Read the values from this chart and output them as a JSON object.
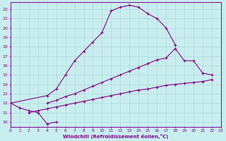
{
  "xlabel": "Windchill (Refroidissement éolien,°C)",
  "bg_color": "#c8eef0",
  "grid_color": "#b0d8da",
  "line_color": "#880088",
  "text_color": "#880088",
  "xlim": [
    0,
    23
  ],
  "ylim": [
    9.5,
    22.7
  ],
  "xticks": [
    0,
    1,
    2,
    3,
    4,
    5,
    6,
    7,
    8,
    9,
    10,
    11,
    12,
    13,
    14,
    15,
    16,
    17,
    18,
    19,
    20,
    21,
    22,
    23
  ],
  "yticks": [
    10,
    11,
    12,
    13,
    14,
    15,
    16,
    17,
    18,
    19,
    20,
    21,
    22
  ],
  "curve1": {
    "x": [
      0,
      1,
      2,
      3,
      4,
      5
    ],
    "y": [
      12.0,
      11.5,
      11.2,
      11.0,
      9.8,
      10.0
    ]
  },
  "curve2": {
    "x": [
      2,
      3,
      4,
      5,
      6,
      7,
      8,
      9,
      10,
      11,
      12,
      13,
      14,
      15,
      16,
      17,
      18,
      19,
      20,
      21,
      22
    ],
    "y": [
      11.0,
      11.2,
      11.4,
      11.6,
      11.8,
      12.0,
      12.2,
      12.4,
      12.6,
      12.8,
      13.0,
      13.2,
      13.4,
      13.5,
      13.7,
      13.9,
      14.0,
      14.1,
      14.2,
      14.3,
      14.5
    ]
  },
  "curve3": {
    "x": [
      4,
      5,
      6,
      7,
      8,
      9,
      10,
      11,
      12,
      13,
      14,
      15,
      16,
      17,
      18,
      19,
      20,
      21,
      22
    ],
    "y": [
      12.0,
      12.3,
      12.7,
      13.0,
      13.4,
      13.8,
      14.2,
      14.6,
      15.0,
      15.4,
      15.8,
      16.2,
      16.6,
      16.8,
      17.8,
      16.5,
      16.5,
      15.2,
      15.0
    ]
  },
  "curve4": {
    "x": [
      0,
      4,
      5,
      6,
      7,
      8,
      9,
      10,
      11,
      12,
      13,
      14,
      15,
      16,
      17,
      18
    ],
    "y": [
      12.0,
      12.8,
      13.5,
      15.0,
      16.5,
      17.5,
      18.5,
      19.5,
      21.8,
      22.2,
      22.4,
      22.2,
      21.5,
      21.0,
      20.0,
      18.2
    ]
  }
}
